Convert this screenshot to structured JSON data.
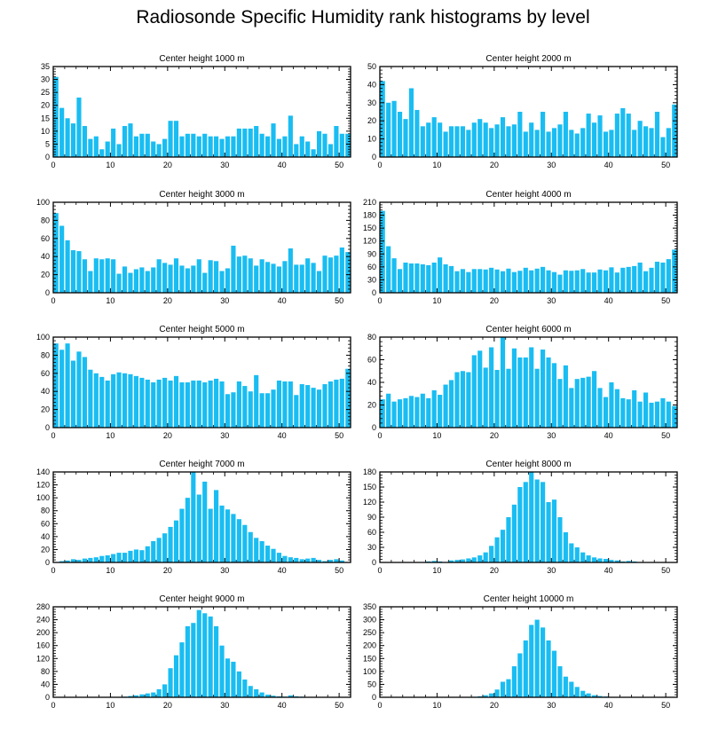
{
  "title": "Radiosonde Specific Humidity rank histograms by level",
  "colors": {
    "bar": "#19bdf2",
    "frame": "#000000"
  },
  "chart_data": [
    {
      "type": "bar",
      "title": "Center height 1000 m",
      "xlim": [
        0,
        52
      ],
      "ylim": [
        0,
        35
      ],
      "xticks": [
        0,
        10,
        20,
        30,
        40,
        50
      ],
      "yticks": [
        0,
        5,
        10,
        15,
        20,
        25,
        30,
        35
      ],
      "values": [
        31,
        19,
        15,
        13,
        23,
        12,
        7,
        8,
        3,
        6,
        11,
        5,
        12,
        13,
        8,
        9,
        9,
        6,
        5,
        7,
        14,
        14,
        8,
        9,
        9,
        8,
        9,
        8,
        8,
        7,
        8,
        8,
        11,
        11,
        11,
        12,
        9,
        8,
        13,
        7,
        8,
        16,
        5,
        8,
        6,
        3,
        10,
        9,
        5,
        12,
        9,
        9
      ]
    },
    {
      "type": "bar",
      "title": "Center height 2000 m",
      "xlim": [
        0,
        52
      ],
      "ylim": [
        0,
        50
      ],
      "xticks": [
        0,
        10,
        20,
        30,
        40,
        50
      ],
      "yticks": [
        0,
        10,
        20,
        30,
        40,
        50
      ],
      "values": [
        42,
        30,
        31,
        25,
        21,
        38,
        26,
        17,
        19,
        22,
        19,
        14,
        17,
        17,
        17,
        15,
        19,
        21,
        19,
        16,
        18,
        22,
        17,
        18,
        25,
        14,
        19,
        15,
        25,
        14,
        16,
        18,
        25,
        15,
        13,
        16,
        24,
        19,
        23,
        14,
        15,
        24,
        27,
        24,
        15,
        20,
        17,
        16,
        25,
        11,
        16,
        29
      ]
    },
    {
      "type": "bar",
      "title": "Center height 3000 m",
      "xlim": [
        0,
        52
      ],
      "ylim": [
        0,
        100
      ],
      "xticks": [
        0,
        10,
        20,
        30,
        40,
        50
      ],
      "yticks": [
        0,
        20,
        40,
        60,
        80,
        100
      ],
      "values": [
        88,
        74,
        58,
        47,
        46,
        37,
        24,
        38,
        37,
        38,
        37,
        21,
        29,
        22,
        26,
        28,
        24,
        28,
        37,
        33,
        31,
        38,
        30,
        27,
        30,
        37,
        22,
        36,
        35,
        24,
        27,
        52,
        40,
        41,
        38,
        30,
        37,
        34,
        32,
        29,
        35,
        49,
        31,
        31,
        38,
        33,
        24,
        41,
        39,
        41,
        50,
        45
      ]
    },
    {
      "type": "bar",
      "title": "Center height 4000 m",
      "xlim": [
        0,
        52
      ],
      "ylim": [
        0,
        210
      ],
      "xticks": [
        0,
        10,
        20,
        30,
        40,
        50
      ],
      "yticks": [
        0,
        30,
        60,
        90,
        120,
        150,
        180,
        210
      ],
      "values": [
        190,
        108,
        80,
        55,
        70,
        68,
        68,
        66,
        64,
        70,
        82,
        66,
        62,
        50,
        55,
        48,
        55,
        55,
        54,
        58,
        54,
        50,
        56,
        48,
        51,
        58,
        52,
        56,
        60,
        52,
        48,
        42,
        52,
        51,
        52,
        55,
        47,
        47,
        54,
        52,
        59,
        47,
        58,
        60,
        62,
        70,
        50,
        58,
        72,
        70,
        78,
        100
      ]
    },
    {
      "type": "bar",
      "title": "Center height 5000 m",
      "xlim": [
        0,
        52
      ],
      "ylim": [
        0,
        100
      ],
      "xticks": [
        0,
        10,
        20,
        30,
        40,
        50
      ],
      "yticks": [
        0,
        20,
        40,
        60,
        80,
        100
      ],
      "values": [
        93,
        86,
        93,
        74,
        84,
        78,
        64,
        60,
        56,
        52,
        59,
        61,
        60,
        59,
        57,
        55,
        53,
        50,
        53,
        55,
        52,
        57,
        50,
        50,
        52,
        52,
        50,
        52,
        54,
        51,
        37,
        39,
        51,
        46,
        40,
        58,
        38,
        38,
        42,
        52,
        51,
        51,
        36,
        48,
        47,
        44,
        42,
        48,
        51,
        53,
        54,
        65
      ]
    },
    {
      "type": "bar",
      "title": "Center height 6000 m",
      "xlim": [
        0,
        52
      ],
      "ylim": [
        0,
        80
      ],
      "xticks": [
        0,
        10,
        20,
        30,
        40,
        50
      ],
      "yticks": [
        0,
        20,
        40,
        60,
        80
      ],
      "values": [
        25,
        30,
        23,
        25,
        26,
        28,
        27,
        30,
        26,
        33,
        29,
        38,
        42,
        49,
        50,
        49,
        64,
        68,
        53,
        71,
        51,
        80,
        52,
        70,
        62,
        62,
        71,
        52,
        69,
        62,
        57,
        43,
        55,
        35,
        43,
        44,
        45,
        50,
        35,
        27,
        40,
        34,
        26,
        25,
        33,
        23,
        31,
        22,
        23,
        26,
        23,
        19
      ]
    },
    {
      "type": "bar",
      "title": "Center height 7000 m",
      "xlim": [
        0,
        52
      ],
      "ylim": [
        0,
        140
      ],
      "xticks": [
        0,
        10,
        20,
        30,
        40,
        50
      ],
      "yticks": [
        0,
        20,
        40,
        60,
        80,
        100,
        120,
        140
      ],
      "values": [
        0,
        2,
        3,
        5,
        4,
        6,
        7,
        8,
        10,
        11,
        13,
        15,
        15,
        18,
        20,
        19,
        25,
        33,
        38,
        45,
        55,
        65,
        83,
        100,
        140,
        105,
        125,
        83,
        112,
        88,
        82,
        75,
        67,
        58,
        47,
        38,
        33,
        26,
        21,
        15,
        10,
        8,
        7,
        5,
        6,
        7,
        4,
        2,
        4,
        5,
        3,
        0
      ]
    },
    {
      "type": "bar",
      "title": "Center height 8000 m",
      "xlim": [
        0,
        52
      ],
      "ylim": [
        0,
        180
      ],
      "xticks": [
        0,
        10,
        20,
        30,
        40,
        50
      ],
      "yticks": [
        0,
        30,
        60,
        90,
        120,
        150,
        180
      ],
      "values": [
        0,
        0,
        0,
        0,
        0,
        0,
        0,
        0,
        2,
        3,
        2,
        0,
        4,
        5,
        6,
        8,
        10,
        14,
        20,
        33,
        50,
        65,
        90,
        115,
        150,
        160,
        180,
        165,
        160,
        120,
        125,
        90,
        60,
        38,
        30,
        20,
        14,
        10,
        8,
        7,
        5,
        4,
        2,
        3,
        2,
        0,
        0,
        0,
        0,
        0,
        0,
        0
      ]
    },
    {
      "type": "bar",
      "title": "Center height 9000 m",
      "xlim": [
        0,
        52
      ],
      "ylim": [
        0,
        280
      ],
      "xticks": [
        0,
        10,
        20,
        30,
        40,
        50
      ],
      "yticks": [
        0,
        40,
        80,
        120,
        160,
        200,
        240,
        280
      ],
      "values": [
        0,
        0,
        0,
        0,
        0,
        0,
        0,
        0,
        0,
        0,
        0,
        0,
        2,
        4,
        6,
        9,
        12,
        15,
        25,
        40,
        90,
        130,
        170,
        220,
        230,
        270,
        260,
        250,
        220,
        160,
        120,
        110,
        80,
        55,
        35,
        25,
        15,
        8,
        5,
        3,
        2,
        6,
        3,
        2,
        0,
        0,
        0,
        0,
        0,
        0,
        0,
        0
      ]
    },
    {
      "type": "bar",
      "title": "Center height 10000 m",
      "xlim": [
        0,
        52
      ],
      "ylim": [
        0,
        350
      ],
      "xticks": [
        0,
        10,
        20,
        30,
        40,
        50
      ],
      "yticks": [
        0,
        50,
        100,
        150,
        200,
        250,
        300,
        350
      ],
      "values": [
        0,
        0,
        0,
        0,
        0,
        0,
        0,
        0,
        0,
        0,
        0,
        0,
        0,
        0,
        0,
        0,
        2,
        4,
        8,
        15,
        30,
        60,
        70,
        120,
        170,
        220,
        280,
        300,
        270,
        220,
        180,
        120,
        80,
        60,
        40,
        25,
        15,
        8,
        5,
        3,
        0,
        0,
        0,
        0,
        0,
        0,
        0,
        0,
        0,
        0,
        0,
        0
      ]
    }
  ]
}
